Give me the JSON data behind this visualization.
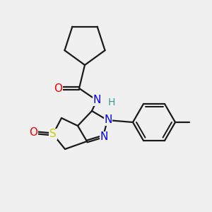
{
  "bg_color": "#f0f0f0",
  "bond_color": "#1a1a1a",
  "atom_colors": {
    "O": "#ff0000",
    "N": "#0000ff",
    "S": "#cccc00",
    "H": "#3a9a9a",
    "C": "#1a1a1a"
  },
  "line_width": 1.6,
  "font_size": 10.5,
  "figsize": [
    3.0,
    3.0
  ],
  "dpi": 100
}
